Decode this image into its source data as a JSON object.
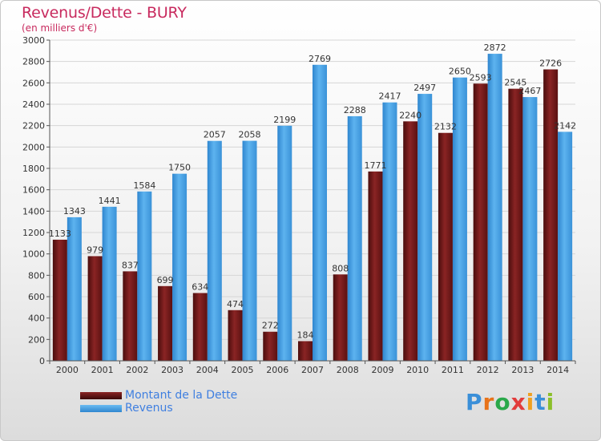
{
  "header": {
    "title": "Revenus/Dette - BURY",
    "subtitle": "(en milliers d'€)"
  },
  "logo": {
    "text": "Proxiti",
    "letters": [
      "P",
      "r",
      "o",
      "x",
      "i",
      "t",
      "i"
    ],
    "colors": [
      "#3a8fd8",
      "#e8731a",
      "#2aa84a",
      "#e23c3c",
      "#f0a020",
      "#3a8fd8",
      "#8bbf2a"
    ]
  },
  "colors": {
    "dette": "#7a1c1c",
    "revenus": "#4da6e8",
    "grid": "#d6d6d6"
  },
  "chart_data": {
    "type": "bar",
    "title": "Revenus/Dette - BURY",
    "ylabel": "(en milliers d'€)",
    "ylim": [
      0,
      3000
    ],
    "yticks": [
      0,
      200,
      400,
      600,
      800,
      1000,
      1200,
      1400,
      1600,
      1800,
      2000,
      2200,
      2400,
      2600,
      2800,
      3000
    ],
    "grid": true,
    "legend_position": "bottom-left",
    "categories": [
      "2000",
      "2001",
      "2002",
      "2003",
      "2004",
      "2005",
      "2006",
      "2007",
      "2008",
      "2009",
      "2010",
      "2011",
      "2012",
      "2013",
      "2014"
    ],
    "series": [
      {
        "name": "Montant de la Dette",
        "values": [
          1133,
          979,
          837,
          699,
          634,
          474,
          272,
          184,
          808,
          1771,
          2240,
          2132,
          2593,
          2545,
          2726
        ],
        "labels": [
          "1133",
          "979",
          "837",
          "699",
          "634",
          "474",
          "272",
          "184",
          "808",
          "1771",
          "2240",
          "2132",
          "2593",
          "2545",
          "2726"
        ]
      },
      {
        "name": "Revenus",
        "values": [
          1343,
          1441,
          1584,
          1750,
          2057,
          2058,
          2199,
          2769,
          2288,
          2417,
          2497,
          2650,
          2872,
          2467,
          2142
        ],
        "labels": [
          "1343",
          "1441",
          "1584",
          "1750",
          "2057",
          "2058",
          "2199",
          "2769",
          "2288",
          "2417",
          "2497",
          "2650",
          "2872",
          "2467",
          "2142"
        ]
      }
    ]
  }
}
